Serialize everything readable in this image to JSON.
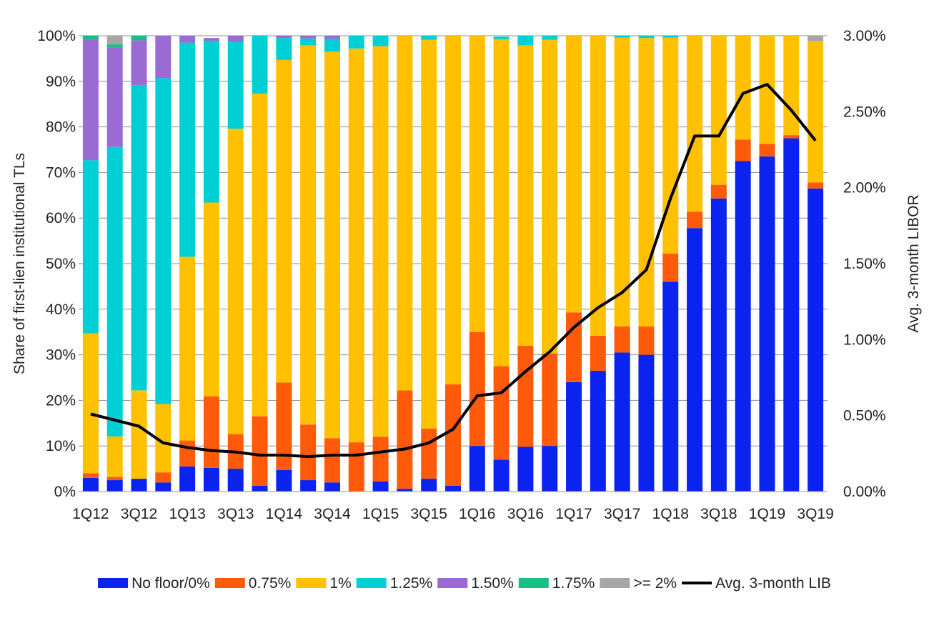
{
  "chart_data": {
    "type": "bar",
    "stacked": true,
    "categories": [
      "1Q12",
      "2Q12",
      "3Q12",
      "4Q12",
      "1Q13",
      "2Q13",
      "3Q13",
      "4Q13",
      "1Q14",
      "2Q14",
      "3Q14",
      "4Q14",
      "1Q15",
      "2Q15",
      "3Q15",
      "4Q15",
      "1Q16",
      "2Q16",
      "3Q16",
      "4Q16",
      "1Q17",
      "2Q17",
      "3Q17",
      "4Q17",
      "1Q18",
      "2Q18",
      "3Q18",
      "4Q18",
      "1Q19",
      "2Q19",
      "3Q19"
    ],
    "x_tick_labels": [
      "1Q12",
      "",
      "3Q12",
      "",
      "1Q13",
      "",
      "3Q13",
      "",
      "1Q14",
      "",
      "3Q14",
      "",
      "1Q15",
      "",
      "3Q15",
      "",
      "1Q16",
      "",
      "3Q16",
      "",
      "1Q17",
      "",
      "3Q17",
      "",
      "1Q18",
      "",
      "3Q18",
      "",
      "1Q19",
      "",
      "3Q19"
    ],
    "series": [
      {
        "name": "No floor/0%",
        "color": "#0A23F0",
        "values": [
          3,
          2.5,
          2.8,
          2,
          5.5,
          5.2,
          5,
          1.3,
          4.7,
          2.5,
          2,
          0,
          2.2,
          0.6,
          2.8,
          1.3,
          10,
          7,
          9.8,
          10,
          24,
          26.5,
          30.5,
          30,
          46,
          57.8,
          64.3,
          72.5,
          73.5,
          77.5,
          66.5
        ]
      },
      {
        "name": "0.75%",
        "color": "#FF5A0A",
        "values": [
          1,
          0.7,
          0,
          2.2,
          5.7,
          15.7,
          7.6,
          15.2,
          19.2,
          12.2,
          9.7,
          10.8,
          9.8,
          21.6,
          11,
          22.2,
          25,
          20.5,
          22.2,
          20.3,
          15.3,
          7.7,
          5.7,
          6.2,
          6.2,
          3.6,
          3,
          4.7,
          2.8,
          0.7,
          1.3
        ]
      },
      {
        "name": "1%",
        "color": "#FFC000",
        "values": [
          30.7,
          8.9,
          19.4,
          15,
          40.3,
          42.5,
          67,
          70.8,
          70.8,
          83.2,
          84.8,
          86.4,
          85.7,
          77.8,
          85.3,
          76.5,
          65,
          71.7,
          65.9,
          68.8,
          60.7,
          65.8,
          63.4,
          63.3,
          47.4,
          38.6,
          32.7,
          22.8,
          23.7,
          21.8,
          31
        ]
      },
      {
        "name": "1.25%",
        "color": "#00D0D6",
        "values": [
          38,
          63.5,
          67,
          71.5,
          47,
          35.5,
          19,
          12.8,
          4.8,
          1.5,
          2.8,
          2.8,
          2.3,
          0,
          0.9,
          0,
          0,
          0.6,
          2.1,
          0.9,
          0,
          0,
          0.4,
          0.5,
          0.4,
          0,
          0,
          0,
          0,
          0,
          0
        ]
      },
      {
        "name": "1.50%",
        "color": "#9A6BD4",
        "values": [
          26.5,
          21.8,
          9.8,
          9.3,
          1.5,
          0.6,
          1.4,
          0,
          0.5,
          0.6,
          0.7,
          0,
          0,
          0,
          0,
          0,
          0,
          0,
          0,
          0,
          0,
          0,
          0,
          0,
          0,
          0,
          0,
          0,
          0,
          0,
          0
        ]
      },
      {
        "name": "1.75%",
        "color": "#18BE82",
        "values": [
          0.8,
          0.7,
          1,
          0,
          0,
          0,
          0,
          0,
          0,
          0,
          0,
          0,
          0,
          0,
          0,
          0,
          0,
          0,
          0,
          0,
          0,
          0,
          0,
          0,
          0,
          0,
          0,
          0,
          0,
          0,
          0
        ]
      },
      {
        "name": ">= 2%",
        "color": "#A6A6A6",
        "values": [
          0,
          1.9,
          0,
          0,
          0,
          0,
          0,
          0,
          0,
          0,
          0,
          0,
          0,
          0,
          0,
          0,
          0,
          0,
          0,
          0,
          0,
          0,
          0,
          0,
          0,
          0,
          0,
          0,
          0,
          0,
          1.2
        ]
      }
    ],
    "line_series": {
      "name": "Avg. 3-month LIB",
      "color": "#000000",
      "axis": "right",
      "values": [
        0.51,
        0.47,
        0.43,
        0.32,
        0.29,
        0.27,
        0.26,
        0.24,
        0.24,
        0.23,
        0.24,
        0.24,
        0.26,
        0.28,
        0.32,
        0.41,
        0.63,
        0.65,
        0.79,
        0.92,
        1.08,
        1.21,
        1.31,
        1.46,
        1.93,
        2.34,
        2.34,
        2.62,
        2.68,
        2.51,
        2.31
      ]
    },
    "ylabel": "Share of first-lien institutional TLs",
    "ylim": [
      0,
      100
    ],
    "y_ticks": [
      "0%",
      "10%",
      "20%",
      "30%",
      "40%",
      "50%",
      "60%",
      "70%",
      "80%",
      "90%",
      "100%"
    ],
    "y2label": "Avg. 3-month LIBOR",
    "y2lim": [
      0,
      3
    ],
    "y2_ticks": [
      "0.00%",
      "0.50%",
      "1.00%",
      "1.50%",
      "2.00%",
      "2.50%",
      "3.00%"
    ],
    "grid": true,
    "legend_position": "bottom"
  }
}
